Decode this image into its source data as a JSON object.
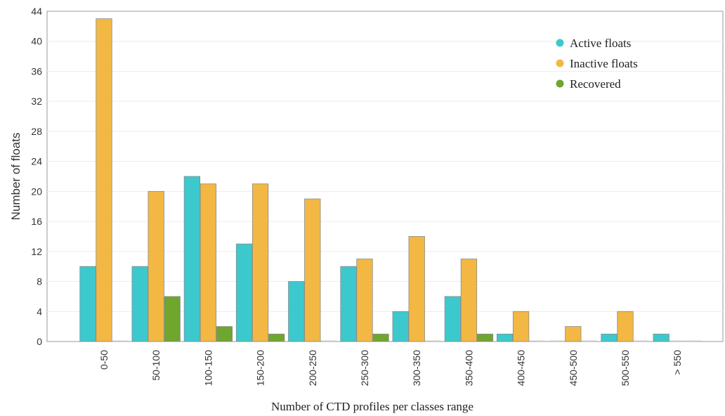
{
  "chart_data": {
    "type": "bar",
    "title": "",
    "xlabel": "Number of CTD profiles per classes range",
    "ylabel": "Number of floats",
    "ylim": [
      0,
      44
    ],
    "yticks": [
      0,
      4,
      8,
      12,
      16,
      20,
      24,
      28,
      32,
      36,
      40,
      44
    ],
    "grid": true,
    "legend_position": "top-right",
    "categories": [
      "0-50",
      "50-100",
      "100-150",
      "150-200",
      "200-250",
      "250-300",
      "300-350",
      "350-400",
      "400-450",
      "450-500",
      "500-550",
      "> 550"
    ],
    "series": [
      {
        "name": "Active floats",
        "color": "#3cc9ce",
        "values": [
          10,
          10,
          22,
          13,
          8,
          10,
          4,
          6,
          1,
          0,
          1,
          1
        ]
      },
      {
        "name": "Inactive floats",
        "color": "#f2b843",
        "values": [
          43,
          20,
          21,
          21,
          19,
          11,
          14,
          11,
          4,
          2,
          4,
          0
        ]
      },
      {
        "name": "Recovered",
        "color": "#6fa62e",
        "values": [
          0,
          6,
          2,
          1,
          0,
          1,
          0,
          1,
          0,
          0,
          0,
          0
        ]
      }
    ]
  }
}
